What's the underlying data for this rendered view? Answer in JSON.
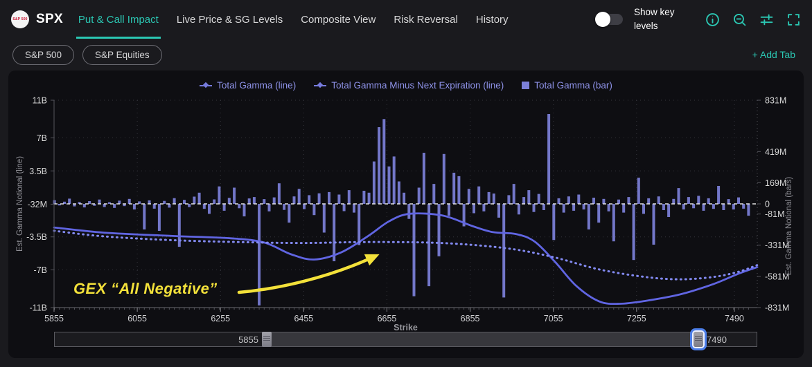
{
  "header": {
    "logo_text": "S&P 500",
    "symbol": "SPX",
    "tabs": [
      {
        "label": "Put & Call Impact",
        "active": true
      },
      {
        "label": "Live Price & SG Levels",
        "active": false
      },
      {
        "label": "Composite View",
        "active": false
      },
      {
        "label": "Risk Reversal",
        "active": false
      },
      {
        "label": "History",
        "active": false
      }
    ],
    "show_key_levels_label": "Show key levels",
    "toggle_state": "off",
    "icons": [
      "info-icon",
      "zoom-out-icon",
      "sliders-icon",
      "fullscreen-icon"
    ],
    "accent_color": "#2bc7b3"
  },
  "tab_bar": {
    "pills": [
      "S&P 500",
      "S&P Equities"
    ],
    "add_tab_label": "+ Add Tab"
  },
  "annotation": {
    "text": "GEX “All Negative”",
    "color": "#f3e13a"
  },
  "range_slider": {
    "min_label": "5855",
    "max_label": "7490"
  },
  "chart_data": {
    "type": "bar",
    "title": "",
    "legend": [
      {
        "label": "Total Gamma (line)",
        "marker": "line-diamond"
      },
      {
        "label": "Total Gamma Minus Next Expiration (line)",
        "marker": "line-diamond"
      },
      {
        "label": "Total Gamma (bar)",
        "marker": "square"
      }
    ],
    "x_axis": {
      "label": "Strike",
      "ticks": [
        5855,
        6055,
        6255,
        6455,
        6655,
        6855,
        7055,
        7255,
        7490
      ],
      "domain": [
        5855,
        7545
      ]
    },
    "left_axis": {
      "label": "Est. Gamma Notional (line)",
      "unit": "B",
      "tick_labels": [
        "11B",
        "7B",
        "3.5B",
        "-32M",
        "-3.5B",
        "-7B",
        "-11B"
      ],
      "tick_values_B": [
        11,
        7,
        3.5,
        -0.032,
        -3.5,
        -7,
        -11
      ],
      "range_B": [
        -11,
        11
      ]
    },
    "right_axis": {
      "label": "Est. Gamma Notional (bars)",
      "unit": "M",
      "tick_labels": [
        "831M",
        "419M",
        "169M",
        "0",
        "-81M",
        "-331M",
        "-581M",
        "-831M"
      ],
      "tick_values_M": [
        831,
        419,
        169,
        0,
        -81,
        -331,
        -581,
        -831
      ],
      "range_M": [
        -831,
        831
      ]
    },
    "zero_line": true,
    "grid": "dotted",
    "legend_position": "top-center",
    "colors": {
      "bar": "#7c80d9",
      "line_solid": "#6065e2",
      "line_dotted": "#8289f0",
      "zero_line": "#e2e2e2",
      "annotation": "#f3e13a",
      "grid": "#35353c"
    },
    "bars": {
      "name": "Total Gamma (bar)",
      "unit": "M",
      "start_strike": 5856,
      "strike_step": 12,
      "values": [
        30,
        -12,
        18,
        42,
        -20,
        15,
        -28,
        22,
        -15,
        35,
        -25,
        14,
        -32,
        26,
        -18,
        40,
        -45,
        20,
        -205,
        28,
        -38,
        -216,
        24,
        -30,
        46,
        -344,
        32,
        -26,
        58,
        90,
        -40,
        -80,
        36,
        140,
        -55,
        48,
        130,
        -35,
        -100,
        44,
        55,
        -814,
        38,
        -60,
        52,
        165,
        -48,
        -150,
        60,
        120,
        -42,
        70,
        -90,
        85,
        -230,
        95,
        -460,
        75,
        -58,
        110,
        -70,
        -330,
        105,
        90,
        340,
        615,
        680,
        300,
        380,
        180,
        90,
        -120,
        -740,
        130,
        410,
        -660,
        160,
        -420,
        400,
        -95,
        250,
        222,
        -180,
        120,
        -75,
        140,
        -60,
        95,
        83,
        -110,
        -750,
        70,
        160,
        -85,
        55,
        110,
        -65,
        80,
        -50,
        720,
        -290,
        45,
        -70,
        60,
        -55,
        75,
        -45,
        -205,
        50,
        -150,
        40,
        -60,
        -300,
        35,
        -70,
        55,
        -450,
        210,
        -80,
        45,
        -327,
        60,
        -50,
        -105,
        40,
        127,
        -45,
        55,
        -35,
        65,
        -55,
        45,
        -40,
        144,
        -50,
        38,
        -45,
        52,
        -38,
        -95
      ]
    },
    "series": [
      {
        "name": "Total Gamma (line)",
        "unit": "B",
        "style": "solid",
        "points": [
          [
            5855,
            -2.5
          ],
          [
            5975,
            -3.05
          ],
          [
            6140,
            -3.4
          ],
          [
            6280,
            -3.65
          ],
          [
            6360,
            -4.1
          ],
          [
            6425,
            -5.35
          ],
          [
            6480,
            -5.9
          ],
          [
            6545,
            -5.15
          ],
          [
            6610,
            -3.4
          ],
          [
            6660,
            -1.85
          ],
          [
            6710,
            -1.05
          ],
          [
            6790,
            -1.25
          ],
          [
            6860,
            -2.35
          ],
          [
            6910,
            -3.0
          ],
          [
            6965,
            -3.2
          ],
          [
            7010,
            -4.0
          ],
          [
            7060,
            -6.2
          ],
          [
            7110,
            -8.7
          ],
          [
            7165,
            -10.35
          ],
          [
            7215,
            -10.6
          ],
          [
            7275,
            -10.3
          ],
          [
            7360,
            -9.6
          ],
          [
            7440,
            -8.5
          ],
          [
            7500,
            -7.4
          ],
          [
            7545,
            -6.7
          ]
        ]
      },
      {
        "name": "Total Gamma Minus Next Expiration (line)",
        "unit": "B",
        "style": "dotted",
        "points": [
          [
            5855,
            -2.85
          ],
          [
            5975,
            -3.45
          ],
          [
            6140,
            -3.85
          ],
          [
            6300,
            -4.05
          ],
          [
            6450,
            -4.15
          ],
          [
            6600,
            -4.05
          ],
          [
            6750,
            -4.1
          ],
          [
            6860,
            -4.35
          ],
          [
            6965,
            -4.85
          ],
          [
            7060,
            -5.7
          ],
          [
            7165,
            -6.95
          ],
          [
            7275,
            -7.75
          ],
          [
            7360,
            -8.0
          ],
          [
            7440,
            -7.75
          ],
          [
            7500,
            -7.2
          ],
          [
            7545,
            -6.5
          ]
        ]
      }
    ]
  }
}
